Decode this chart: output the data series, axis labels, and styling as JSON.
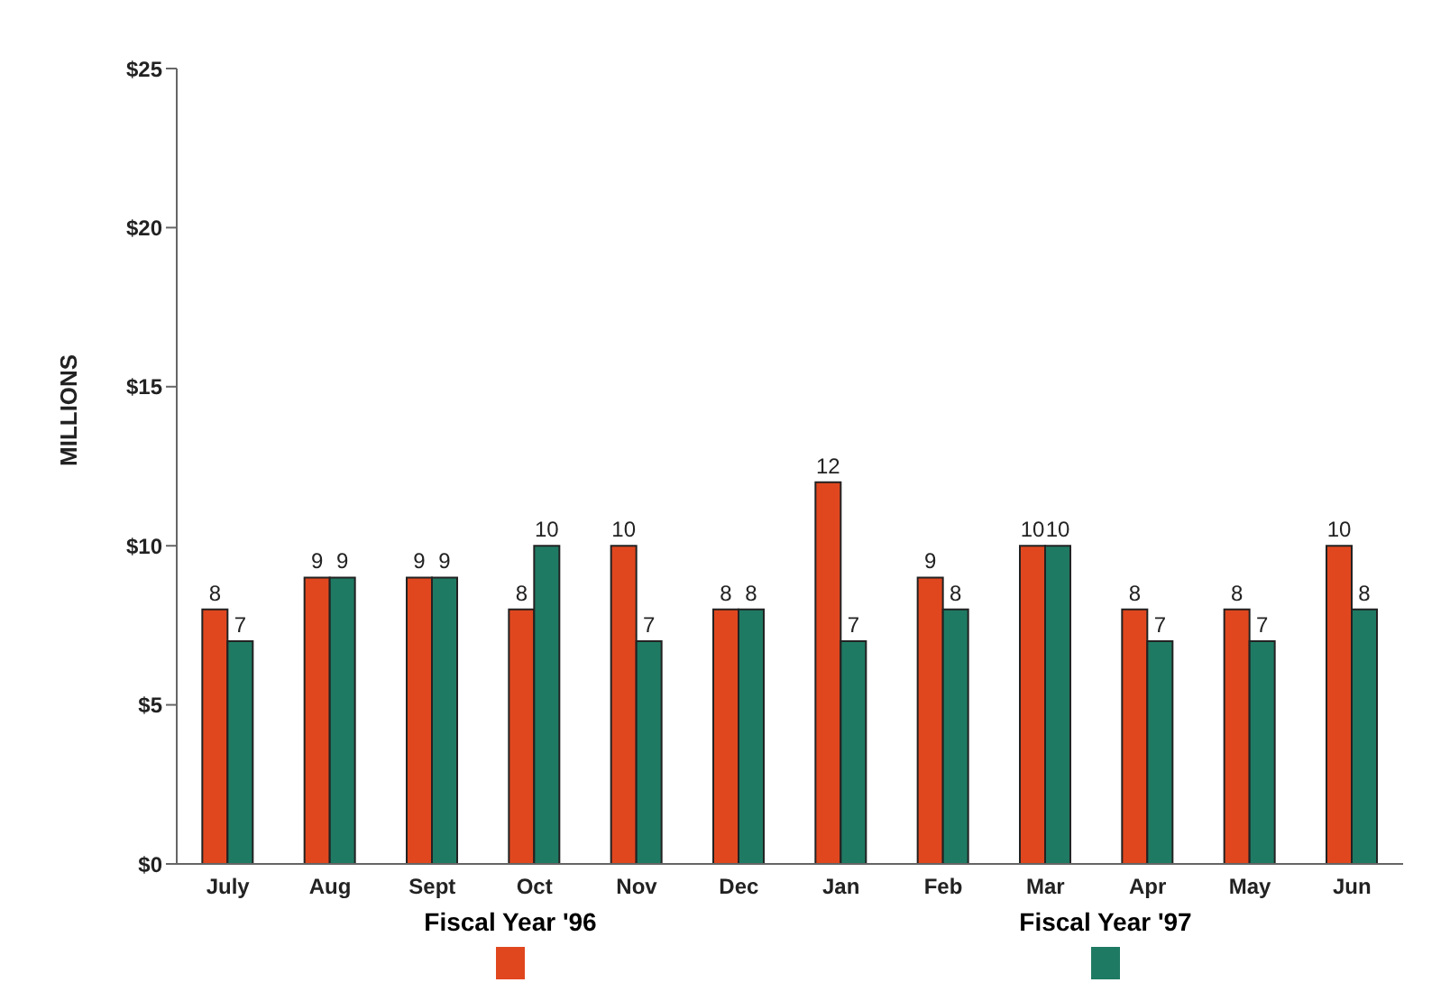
{
  "chart_data": {
    "type": "bar",
    "ylabel": "MILLIONS",
    "categories": [
      "July",
      "Aug",
      "Sept",
      "Oct",
      "Nov",
      "Dec",
      "Jan",
      "Feb",
      "Mar",
      "Apr",
      "May",
      "Jun"
    ],
    "series": [
      {
        "name": "Fiscal Year '96",
        "color": "#e0471f",
        "values": [
          8,
          9,
          9,
          8,
          10,
          8,
          12,
          9,
          10,
          8,
          8,
          10
        ]
      },
      {
        "name": "Fiscal Year '97",
        "color": "#1f7a63",
        "values": [
          7,
          9,
          9,
          10,
          7,
          8,
          7,
          8,
          10,
          7,
          7,
          8
        ]
      }
    ],
    "ylim": [
      0,
      25
    ],
    "yticks": [
      {
        "value": 0,
        "label": "$0"
      },
      {
        "value": 5,
        "label": "$5"
      },
      {
        "value": 10,
        "label": "$10"
      },
      {
        "value": 15,
        "label": "$15"
      },
      {
        "value": 20,
        "label": "$20"
      },
      {
        "value": 25,
        "label": "$25"
      }
    ],
    "data_labels": true,
    "grid": false,
    "legend": "bottom"
  }
}
